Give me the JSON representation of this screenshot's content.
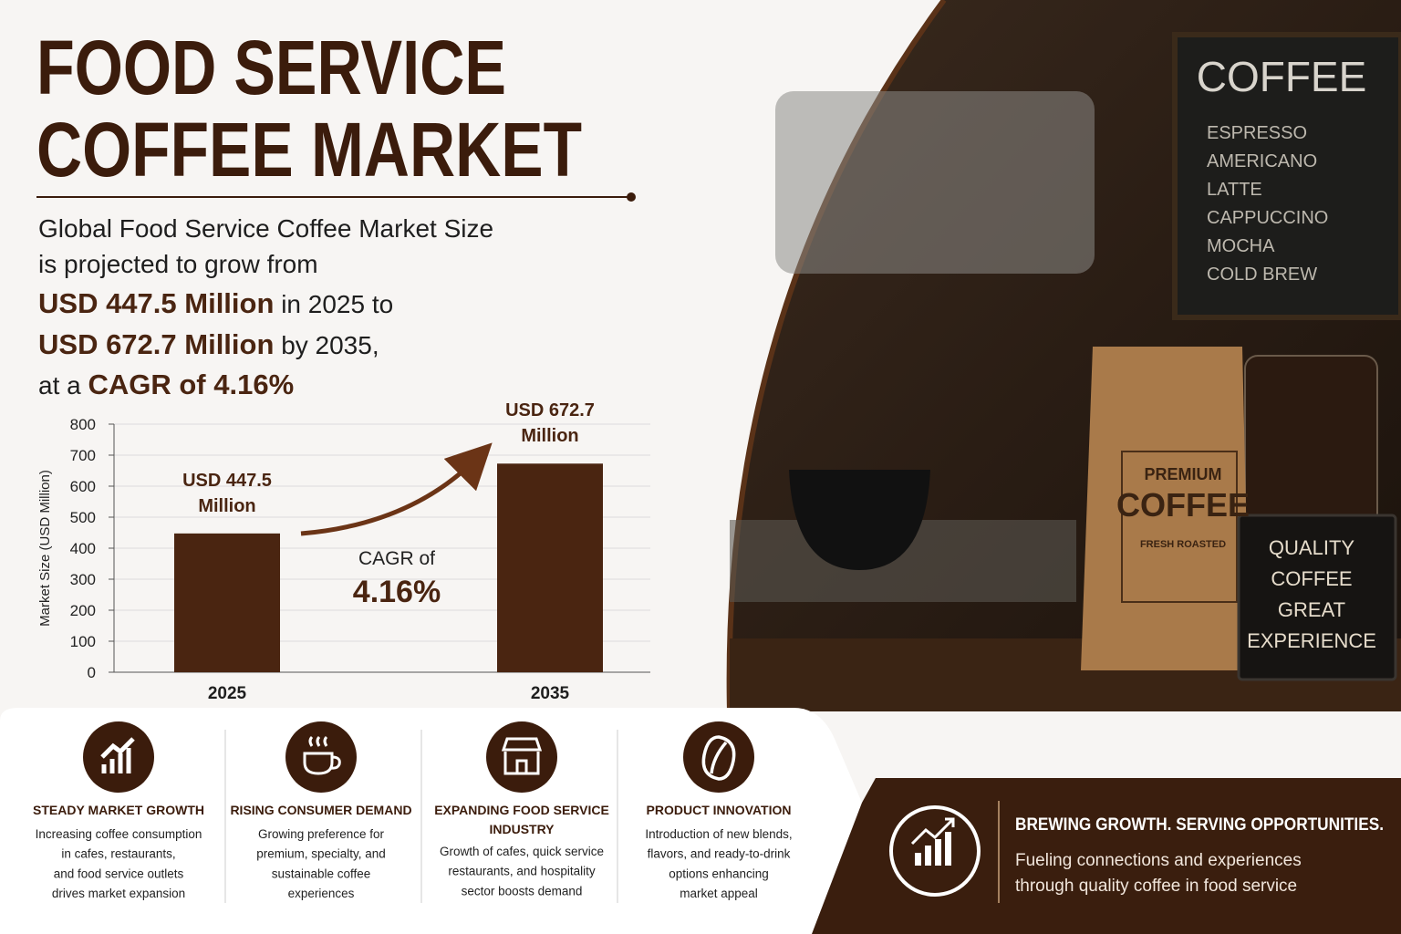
{
  "header": {
    "title": [
      "FOOD SERVICE",
      "COFFEE MARKET"
    ]
  },
  "intro": {
    "line1": "Global Food Service Coffee Market Size",
    "line2": "is projected to grow from",
    "start_value": "USD 447.5 Million",
    "line3": "in 2025 to",
    "end_value": "USD 672.7 Million",
    "line4": "by 2035,",
    "line5": "at a",
    "cagr": "CAGR of 4.16%"
  },
  "chart_data": {
    "type": "bar",
    "y_label": "Market Size (USD Million)",
    "categories": [
      "2025",
      "2035"
    ],
    "values": [
      447.5,
      672.7
    ],
    "value_labels": [
      "USD 447.5 Million",
      "USD 672.7 Million"
    ],
    "color": "#4a2511",
    "ylim": [
      0,
      800
    ],
    "yticks": [
      0,
      100,
      200,
      300,
      400,
      500,
      600,
      700,
      800
    ],
    "grid": true,
    "annotation": [
      "CAGR of",
      "4.16%"
    ]
  },
  "features": [
    {
      "title": [
        "STEADY MARKET GROWTH"
      ],
      "lines": [
        "Increasing coffee consumption",
        "in cafes, restaurants,",
        "and food service outlets",
        "drives market expansion"
      ]
    },
    {
      "title": [
        "RISING CONSUMER DEMAND"
      ],
      "lines": [
        "Growing preference for",
        "premium, specialty, and",
        "sustainable coffee",
        "experiences"
      ]
    },
    {
      "title": [
        "EXPANDING FOOD SERVICE",
        "INDUSTRY"
      ],
      "lines": [
        "Growth of cafes, quick service",
        "restaurants, and hospitality",
        "sector boosts demand"
      ]
    },
    {
      "title": [
        "PRODUCT INNOVATION"
      ],
      "lines": [
        "Introduction of new blends,",
        "flavors, and ready-to-drink",
        "options enhancing",
        "market appeal"
      ]
    }
  ],
  "footer": {
    "title": "BREWING GROWTH. SERVING OPPORTUNITIES.",
    "lines": [
      "Fueling connections and experiences",
      "through quality coffee in food service"
    ]
  },
  "photo": {
    "menu_title": "COFFEE",
    "menu": [
      "ESPRESSO",
      "AMERICANO",
      "LATTE",
      "CAPPUCCINO",
      "MOCHA",
      "COLD BREW"
    ],
    "bag": [
      "PREMIUM",
      "COFFEE",
      "FRESH ROASTED"
    ],
    "sign": [
      "QUALITY",
      "COFFEE",
      "GREAT",
      "EXPERIENCE"
    ]
  }
}
